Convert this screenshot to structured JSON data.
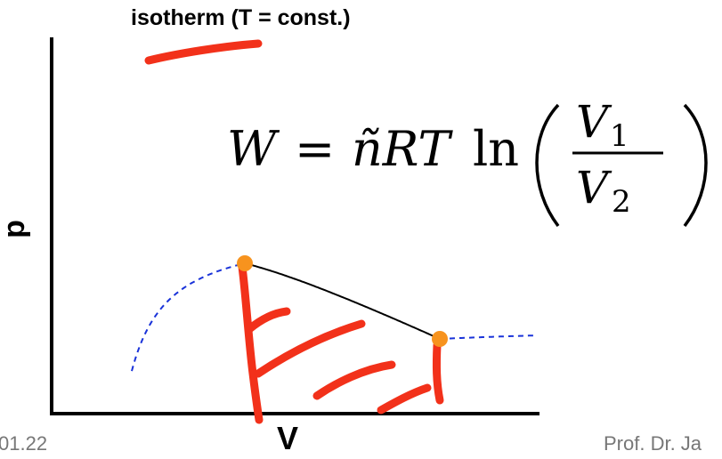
{
  "diagram": {
    "curve_label": "isotherm (T = const.)",
    "y_axis_label": "p",
    "x_axis_label": "V",
    "formula": {
      "lhs": "W",
      "equals": "=",
      "coefficient": "ñRT",
      "function": "ln",
      "numerator": "V",
      "numerator_sub": "1",
      "denominator": "V",
      "denominator_sub": "2"
    },
    "colors": {
      "isotherm_dashed": "#1a33d9",
      "work_path": "#000000",
      "state_points": "#f7931e",
      "annotation": "#f2311a",
      "axes": "#000000"
    }
  },
  "footer": {
    "date_fragment": "01.22",
    "author_fragment": "Prof. Dr. Ja"
  }
}
